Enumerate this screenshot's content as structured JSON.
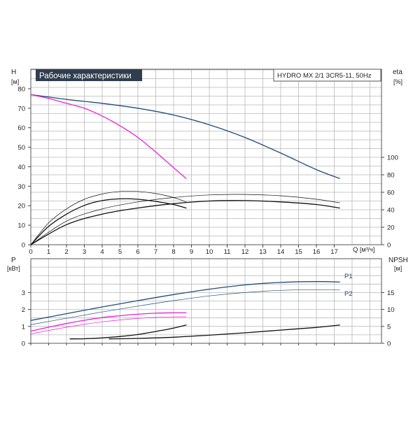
{
  "chart_data": [
    {
      "type": "line",
      "title": "Рабочие характеристики",
      "model_label": "HYDRO MX 2/1 3CR5-11, 50Hz",
      "ylabel": "H",
      "yunit": "[м]",
      "y2label": "eta",
      "y2unit": "[%]",
      "xlabel": "Q",
      "xunit": "[м³/ч]",
      "xlim": [
        0,
        18
      ],
      "ylim": [
        0,
        90
      ],
      "y2lim": [
        0,
        100
      ],
      "xticks": [
        "0",
        "1",
        "2",
        "3",
        "4",
        "5",
        "6",
        "7",
        "8",
        "9",
        "10",
        "11",
        "12",
        "13",
        "14",
        "15",
        "16",
        "17"
      ],
      "yticks": [
        "0",
        "10",
        "20",
        "30",
        "40",
        "50",
        "60",
        "70",
        "80"
      ],
      "y2ticks": [
        "0",
        "20",
        "40",
        "60",
        "80",
        "100"
      ],
      "grid": true,
      "series": [
        {
          "axis": "H",
          "color": "#1f4e79",
          "width": 1.3,
          "x": [
            0,
            2,
            4,
            6,
            8,
            10,
            12,
            14,
            16,
            17.3
          ],
          "y": [
            77,
            74.5,
            72.5,
            70,
            66.5,
            61.5,
            55,
            47,
            38.5,
            34
          ]
        },
        {
          "axis": "H",
          "color": "#ee1fd8",
          "width": 1.3,
          "x": [
            0,
            1,
            2,
            3,
            4,
            5,
            6,
            7,
            8,
            8.7
          ],
          "y": [
            77,
            75,
            72.5,
            70,
            66,
            61,
            55,
            47.5,
            39.5,
            34
          ]
        },
        {
          "axis": "eta",
          "color": "#111111",
          "width": 1.3,
          "x": [
            0,
            1,
            2,
            3,
            4,
            5,
            6,
            7,
            8,
            8.7
          ],
          "y": [
            0,
            21,
            35,
            45,
            50.5,
            52.5,
            52,
            49.5,
            46,
            42
          ]
        },
        {
          "axis": "eta",
          "color": "#111111",
          "width": 0.7,
          "x": [
            0,
            1,
            2,
            3,
            4,
            5,
            6,
            7,
            8,
            8.7
          ],
          "y": [
            0,
            25,
            41,
            52,
            58,
            61,
            61,
            58.5,
            54,
            49
          ]
        },
        {
          "axis": "eta",
          "color": "#111111",
          "width": 1.3,
          "x": [
            0,
            2,
            4,
            6,
            8,
            10,
            12,
            14,
            16,
            17.3
          ],
          "y": [
            0,
            23,
            35,
            42,
            47,
            50,
            50.5,
            49,
            46,
            42
          ]
        },
        {
          "axis": "eta",
          "color": "#111111",
          "width": 0.7,
          "x": [
            0,
            2,
            4,
            6,
            8,
            10,
            12,
            14,
            16,
            17.3
          ],
          "y": [
            0,
            27,
            41,
            49,
            54,
            57,
            57.5,
            56,
            52,
            48
          ]
        }
      ]
    },
    {
      "type": "line",
      "ylabel": "P",
      "yunit": "[кВт]",
      "y2label": "NPSH",
      "y2unit": "[м]",
      "xlim": [
        0,
        18
      ],
      "ylim": [
        0,
        4.4
      ],
      "y2lim": [
        0,
        20
      ],
      "yticks": [
        "0",
        "1",
        "2",
        "3"
      ],
      "y2ticks": [
        "0",
        "5",
        "10",
        "15"
      ],
      "grid": true,
      "labels": [
        "P1",
        "P2"
      ],
      "series": [
        {
          "name": "P1",
          "axis": "P",
          "color": "#1f4e79",
          "width": 1.3,
          "x": [
            0,
            2,
            4,
            6,
            8,
            10,
            12,
            14,
            16,
            17.3
          ],
          "y": [
            1.35,
            1.75,
            2.15,
            2.52,
            2.88,
            3.2,
            3.45,
            3.6,
            3.65,
            3.62
          ]
        },
        {
          "name": "P2",
          "axis": "P",
          "color": "#1f4e79",
          "width": 0.7,
          "x": [
            0,
            2,
            4,
            6,
            8,
            10,
            12,
            14,
            16,
            17.3
          ],
          "y": [
            1.1,
            1.48,
            1.85,
            2.2,
            2.52,
            2.8,
            3.0,
            3.13,
            3.17,
            3.15
          ]
        },
        {
          "axis": "P",
          "color": "#ee1fd8",
          "width": 1.3,
          "x": [
            0,
            1,
            2,
            3,
            4,
            5,
            6,
            7,
            8,
            8.7
          ],
          "y": [
            0.72,
            0.95,
            1.17,
            1.36,
            1.52,
            1.63,
            1.72,
            1.78,
            1.8,
            1.8
          ]
        },
        {
          "axis": "P",
          "color": "#ee1fd8",
          "width": 0.7,
          "x": [
            0,
            1,
            2,
            3,
            4,
            5,
            6,
            7,
            8,
            8.7
          ],
          "y": [
            0.55,
            0.76,
            0.95,
            1.12,
            1.27,
            1.38,
            1.47,
            1.53,
            1.56,
            1.57
          ]
        },
        {
          "axis": "NPSH",
          "color": "#111111",
          "width": 1.3,
          "x": [
            2.2,
            3,
            4,
            5,
            6,
            7,
            8,
            8.7
          ],
          "y": [
            1.3,
            1.35,
            1.6,
            2.0,
            2.6,
            3.5,
            4.5,
            5.4
          ]
        },
        {
          "axis": "NPSH",
          "color": "#111111",
          "width": 1.3,
          "x": [
            4.4,
            6,
            8,
            10,
            12,
            14,
            16,
            17.3
          ],
          "y": [
            1.3,
            1.45,
            1.8,
            2.4,
            3.1,
            3.9,
            4.7,
            5.4
          ]
        }
      ]
    }
  ]
}
